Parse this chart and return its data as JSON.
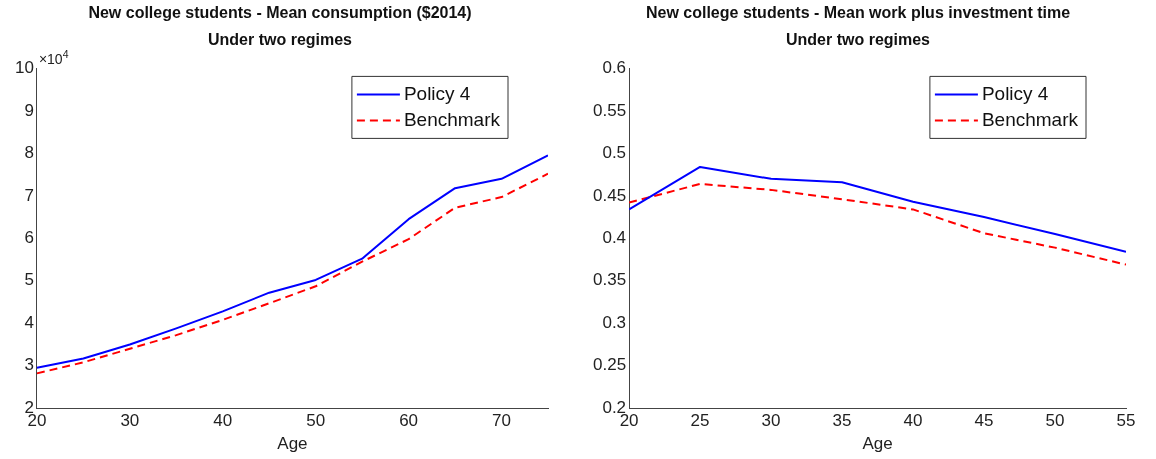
{
  "chart_data": [
    {
      "type": "line",
      "title": "New college students - Mean consumption ($2014)",
      "subtitle": "Under two regimes",
      "xlabel": "Age",
      "x": [
        20,
        25,
        30,
        35,
        40,
        45,
        50,
        55,
        60,
        65,
        70,
        75
      ],
      "series": [
        {
          "name": "Policy 4",
          "color": "#0000ff",
          "line_style": "solid",
          "values": [
            2.95,
            3.17,
            3.5,
            3.88,
            4.28,
            4.72,
            5.02,
            5.52,
            6.45,
            7.18,
            7.4,
            7.95
          ]
        },
        {
          "name": "Benchmark",
          "color": "#ff0000",
          "line_style": "dashed",
          "values": [
            2.82,
            3.08,
            3.4,
            3.72,
            4.08,
            4.47,
            4.87,
            5.45,
            5.98,
            6.72,
            6.97,
            7.52
          ]
        }
      ],
      "xlim": [
        20,
        75
      ],
      "xticks": [
        20,
        30,
        40,
        50,
        60,
        70
      ],
      "ylim": [
        2,
        10
      ],
      "yticks": [
        2,
        3,
        4,
        5,
        6,
        7,
        8,
        9,
        10
      ],
      "annotations": [
        "×10$^{4}$"
      ],
      "grid": false,
      "legend": "top right",
      "marker": "none"
    },
    {
      "type": "line",
      "title": "New college students - Mean work plus investment time",
      "subtitle": "Under two regimes",
      "xlabel": "Age",
      "x": [
        20,
        25,
        30,
        35,
        40,
        45,
        50,
        55
      ],
      "series": [
        {
          "name": "Policy 4",
          "color": "#0000ff",
          "line_style": "solid",
          "values": [
            0.434,
            0.484,
            0.47,
            0.466,
            0.443,
            0.425,
            0.405,
            0.384
          ]
        },
        {
          "name": "Benchmark",
          "color": "#ff0000",
          "line_style": "dashed",
          "values": [
            0.442,
            0.464,
            0.457,
            0.446,
            0.434,
            0.406,
            0.389,
            0.369
          ]
        }
      ],
      "xlim": [
        20,
        55
      ],
      "xticks": [
        20,
        25,
        30,
        35,
        40,
        45,
        50,
        55
      ],
      "ylim": [
        0.2,
        0.6
      ],
      "yticks": [
        0.2,
        0.25,
        0.3,
        0.35,
        0.4,
        0.45,
        0.5,
        0.55,
        0.6
      ],
      "grid": false,
      "legend": "top right",
      "marker": "none"
    }
  ]
}
